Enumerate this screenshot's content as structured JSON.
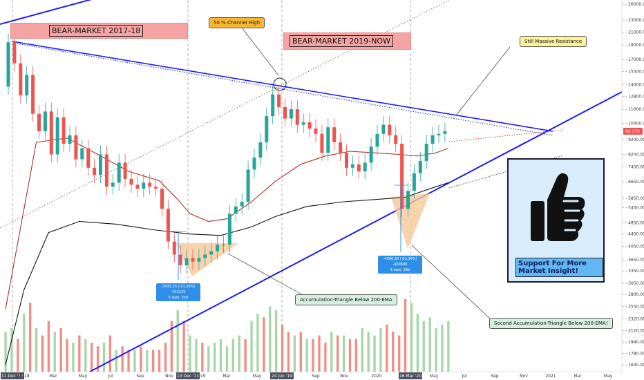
{
  "chart_data": {
    "type": "candlestick",
    "instrument": "BTC",
    "scale": "log",
    "y_ticks": [
      "26000.00",
      "23000.00",
      "21000.00",
      "19000.00",
      "17000.00",
      "15500.00",
      "14000.00",
      "12800.00",
      "11600.00",
      "10400.00",
      "9200.00",
      "8200.00",
      "7450.00",
      "6650.00",
      "5850.00",
      "5450.00",
      "4850.00",
      "4450.00",
      "4050.00",
      "3650.00",
      "3350.00",
      "3050.00",
      "2800.00",
      "2550.00",
      "2320.00",
      "2120.00",
      "1940.00",
      "1780.00",
      "1630.00"
    ],
    "x_ticks": [
      "11 Dec '17",
      "2018",
      "Mar",
      "May",
      "Jul",
      "Sep",
      "Nov",
      "10 Dec '18",
      "2019",
      "Mar",
      "May",
      "24 Jun '19",
      "Sep",
      "Nov",
      "2020",
      "16 Mar '20",
      "May",
      "Jul",
      "Sep",
      "Nov",
      "2021",
      "Mar",
      "May"
    ],
    "x_ticks_highlighted": [
      "11 Dec '17",
      "10 Dec '18",
      "24 Jun '19",
      "16 Mar '20"
    ],
    "price_path": [
      [
        0,
        13800
      ],
      [
        2,
        19400
      ],
      [
        4,
        16500
      ],
      [
        6,
        12900
      ],
      [
        8,
        15100
      ],
      [
        10,
        11200
      ],
      [
        12,
        9800
      ],
      [
        14,
        11400
      ],
      [
        16,
        8200
      ],
      [
        18,
        10900
      ],
      [
        20,
        8900
      ],
      [
        22,
        9500
      ],
      [
        24,
        7900
      ],
      [
        26,
        8600
      ],
      [
        28,
        7400
      ],
      [
        30,
        7000
      ],
      [
        32,
        8200
      ],
      [
        34,
        6400
      ],
      [
        36,
        6600
      ],
      [
        38,
        7700
      ],
      [
        40,
        6800
      ],
      [
        42,
        6500
      ],
      [
        44,
        6300
      ],
      [
        46,
        6600
      ],
      [
        48,
        6400
      ],
      [
        50,
        6300
      ],
      [
        52,
        5400
      ],
      [
        54,
        4200
      ],
      [
        56,
        3800
      ],
      [
        58,
        3500
      ],
      [
        60,
        3700
      ],
      [
        62,
        3600
      ],
      [
        64,
        3700
      ],
      [
        66,
        3800
      ],
      [
        68,
        3900
      ],
      [
        70,
        4100
      ],
      [
        72,
        4100
      ],
      [
        74,
        5200
      ],
      [
        76,
        5500
      ],
      [
        78,
        5700
      ],
      [
        80,
        7300
      ],
      [
        82,
        8000
      ],
      [
        84,
        9000
      ],
      [
        86,
        11000
      ],
      [
        88,
        13000
      ],
      [
        90,
        11800
      ],
      [
        92,
        10800
      ],
      [
        94,
        11600
      ],
      [
        96,
        10300
      ],
      [
        98,
        10500
      ],
      [
        100,
        10000
      ],
      [
        102,
        9600
      ],
      [
        104,
        8300
      ],
      [
        106,
        10100
      ],
      [
        108,
        9000
      ],
      [
        110,
        8300
      ],
      [
        112,
        7400
      ],
      [
        114,
        7600
      ],
      [
        116,
        7200
      ],
      [
        118,
        7700
      ],
      [
        120,
        8700
      ],
      [
        122,
        9600
      ],
      [
        124,
        10300
      ],
      [
        126,
        9500
      ],
      [
        128,
        8900
      ],
      [
        130,
        5400
      ],
      [
        132,
        6200
      ],
      [
        134,
        7100
      ],
      [
        136,
        7800
      ],
      [
        138,
        8900
      ],
      [
        140,
        9500
      ],
      [
        142,
        9600
      ],
      [
        144,
        9800
      ]
    ],
    "ema_100": [
      [
        0,
        2500
      ],
      [
        10,
        9000
      ],
      [
        20,
        9300
      ],
      [
        30,
        8200
      ],
      [
        40,
        7200
      ],
      [
        50,
        6700
      ],
      [
        56,
        5800
      ],
      [
        60,
        5200
      ],
      [
        66,
        4900
      ],
      [
        72,
        5000
      ],
      [
        80,
        5700
      ],
      [
        88,
        6700
      ],
      [
        96,
        7600
      ],
      [
        104,
        8100
      ],
      [
        112,
        8400
      ],
      [
        120,
        8300
      ],
      [
        128,
        8200
      ],
      [
        134,
        8100
      ],
      [
        140,
        8300
      ],
      [
        144,
        8600
      ]
    ],
    "ema_200": [
      [
        0,
        1630
      ],
      [
        6,
        2900
      ],
      [
        14,
        4500
      ],
      [
        24,
        4900
      ],
      [
        36,
        4800
      ],
      [
        48,
        4600
      ],
      [
        60,
        4450
      ],
      [
        70,
        4400
      ],
      [
        80,
        4700
      ],
      [
        88,
        5100
      ],
      [
        98,
        5500
      ],
      [
        110,
        5700
      ],
      [
        120,
        5800
      ],
      [
        130,
        5900
      ],
      [
        138,
        6300
      ],
      [
        144,
        6600
      ]
    ],
    "volume_relative": [
      0.55,
      0.6,
      0.45,
      0.8,
      0.95,
      0.6,
      0.5,
      0.7,
      0.55,
      0.6,
      0.45,
      0.4,
      0.5,
      0.45,
      0.4,
      0.35,
      0.4,
      0.5,
      0.3,
      0.35,
      0.3,
      0.3,
      0.35,
      0.3,
      0.3,
      0.3,
      0.4,
      0.7,
      0.85,
      0.7,
      0.5,
      0.45,
      0.4,
      0.35,
      0.4,
      0.45,
      0.35,
      0.45,
      0.5,
      0.45,
      0.7,
      0.8,
      0.75,
      0.9,
      0.85,
      0.65,
      0.55,
      0.5,
      0.55,
      0.45,
      0.45,
      0.5,
      0.4,
      0.55,
      0.5,
      0.5,
      0.45,
      0.45,
      0.6,
      0.55,
      0.5,
      0.6,
      0.65,
      0.55,
      0.5,
      1.0,
      0.95,
      0.8,
      0.7,
      0.75,
      0.6,
      0.65,
      0.7
    ],
    "volume_colors": [
      "g",
      "g",
      "r",
      "g",
      "r",
      "g",
      "r",
      "r",
      "g",
      "r",
      "r",
      "g",
      "r",
      "g",
      "r",
      "r",
      "g",
      "r",
      "g",
      "r",
      "r",
      "g",
      "r",
      "g",
      "r",
      "r",
      "r",
      "r",
      "g",
      "r",
      "g",
      "g",
      "r",
      "g",
      "g",
      "g",
      "g",
      "g",
      "g",
      "r",
      "g",
      "g",
      "r",
      "g",
      "g",
      "r",
      "r",
      "g",
      "r",
      "g",
      "r",
      "r",
      "r",
      "g",
      "r",
      "g",
      "r",
      "r",
      "g",
      "g",
      "g",
      "g",
      "r",
      "r",
      "r",
      "r",
      "g",
      "g",
      "g",
      "g",
      "g",
      "g",
      "g"
    ],
    "current_price_label": "6d 17h"
  },
  "annotations": {
    "banner_1": "BEAR-MARKET 2017-18",
    "banner_2": "BEAR-MARKET 2019-NOW",
    "channel_high": "50 % Channel High",
    "resistance": "Still Massive Resistance",
    "triangle_1": "Accumulation-Triangle Below 200-EMA",
    "triangle_2": "Second Accumulation-Triangle Below 200-EMA!",
    "measure_1_line1": "-3431.25 (-51.29%) -343125",
    "measure_1_line2": "5 bars, 35d",
    "measure_2_line1": "-4696.90 (-63.34%) -469690",
    "measure_2_line2": "4 bars, 28d",
    "support_caption": "Support For More Market Insight!"
  },
  "colors": {
    "bull": "#26a69a",
    "bear": "#ef5350",
    "volume_bull": "#a5d6a7",
    "volume_bear": "#f28b82",
    "trendline": "#1a1aff",
    "ema_100": "#b03020",
    "ema_200": "#111111",
    "banner": "#f6a3a3",
    "callout_orange": "#f7b733",
    "callout_yellow": "#fdf59a",
    "callout_green": "#d5f0df",
    "triangle_fill": "#f6c998",
    "panel_bg": "#d9ecfb",
    "caption_bg": "#62b6f2"
  },
  "icons": {
    "thumbs_up": "thumbs-up-icon"
  }
}
